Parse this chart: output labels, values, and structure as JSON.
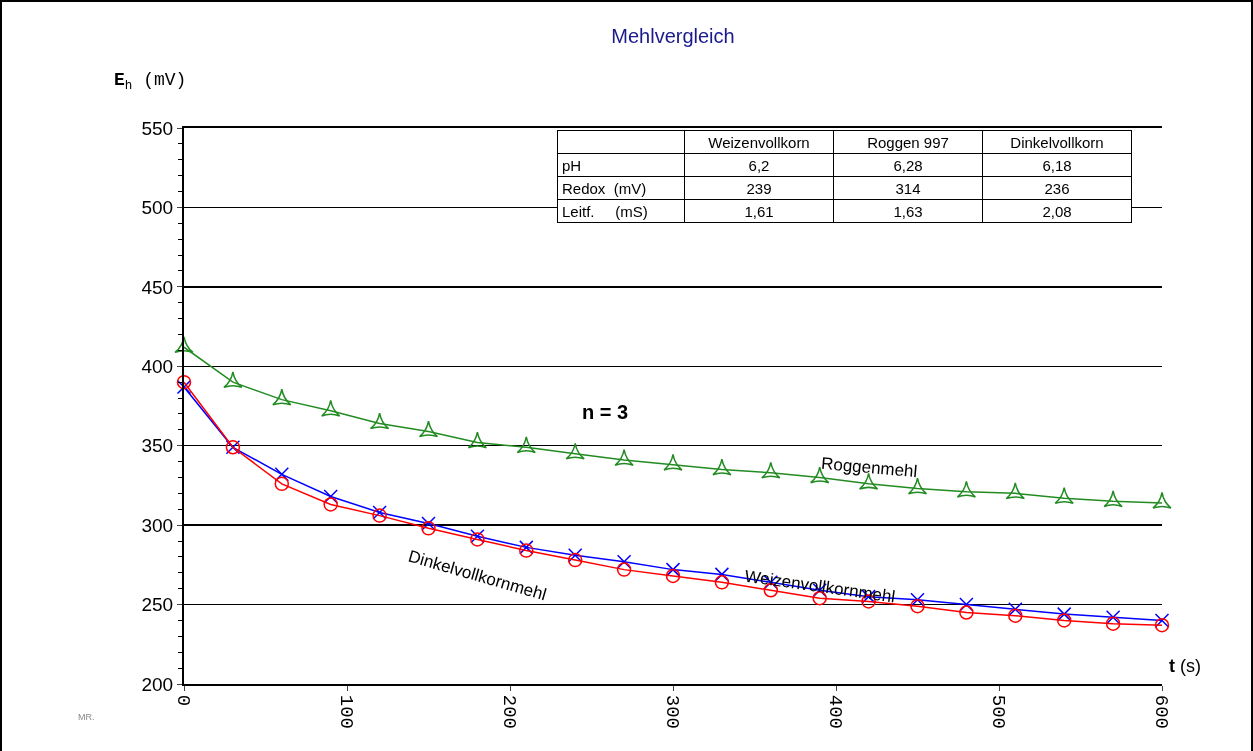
{
  "chart_data": {
    "type": "line",
    "title": "Mehlvergleich",
    "xlabel": "t (s)",
    "ylabel": "E$_{h}$ (mV)",
    "x": [
      0,
      30,
      60,
      90,
      120,
      150,
      180,
      210,
      240,
      270,
      300,
      330,
      360,
      390,
      420,
      450,
      480,
      510,
      540,
      570,
      600
    ],
    "series": [
      {
        "name": "Roggenmehl",
        "color": "#228b22",
        "marker": "star",
        "values": [
          412,
          390,
          379,
          372,
          364,
          359,
          352,
          349,
          345,
          341,
          338,
          335,
          333,
          330,
          326,
          323,
          321,
          320,
          317,
          315,
          314
        ]
      },
      {
        "name": "Weizenvollkornmehl",
        "color": "#0000ff",
        "marker": "cross",
        "values": [
          387,
          349,
          332,
          318,
          308,
          301,
          293,
          286,
          281,
          277,
          272,
          269,
          264,
          259,
          255,
          253,
          250,
          247,
          244,
          242,
          240
        ]
      },
      {
        "name": "Dinkelvollkornmehl",
        "color": "#ff0000",
        "marker": "circle",
        "values": [
          390,
          349,
          326,
          313,
          306,
          298,
          291,
          284,
          278,
          272,
          268,
          264,
          259,
          254,
          252,
          249,
          245,
          243,
          240,
          238,
          237
        ]
      }
    ],
    "xlim": [
      0,
      600
    ],
    "xticks": [
      0,
      100,
      200,
      300,
      400,
      500,
      600
    ],
    "ylim": [
      200,
      550
    ],
    "yticks": [
      200,
      250,
      300,
      350,
      400,
      450,
      500,
      550
    ],
    "grid": "y",
    "legend": false,
    "line_style": "solid",
    "annotations": [
      "Weizenvollkorn",
      "Roggen 997",
      "Dinkelvollkorn",
      "pH",
      "6,2",
      "6,28",
      "6,18",
      "Redox  (mV)",
      "239",
      "314",
      "236",
      "Leitf.     (mS)",
      "1,61",
      "1,63",
      "2,08",
      "n = 3",
      "MR."
    ]
  }
}
